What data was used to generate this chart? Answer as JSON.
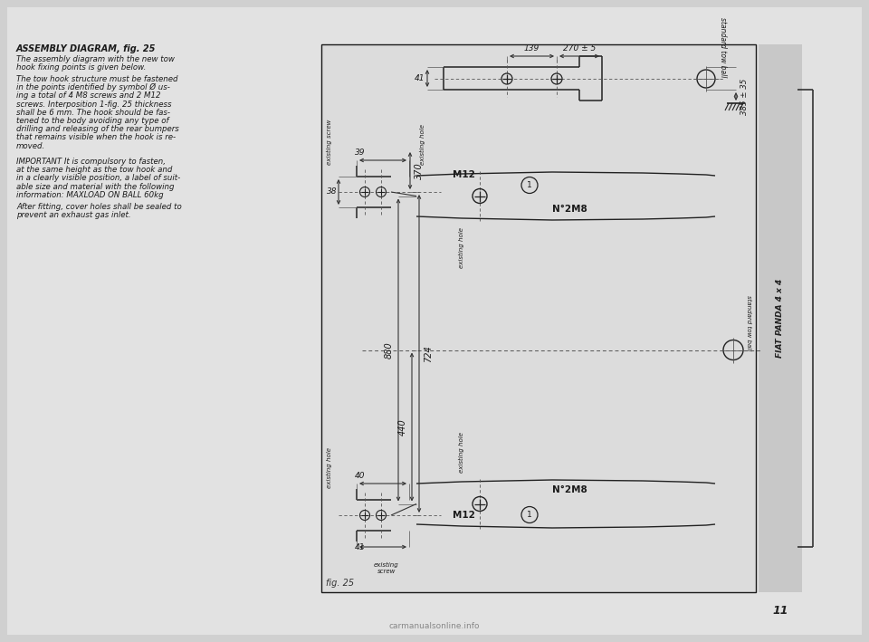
{
  "page_bg": "#c8c8c8",
  "content_bg": "#e8e8e8",
  "diag_bg": "#e0e0e0",
  "black": "#1a1a1a",
  "dark": "#2a2a2a",
  "gray": "#666666",
  "title_text": "ASSEMBLY DIAGRAM, fig. 25",
  "side_text": "FIAT PANDA 4 x 4",
  "page_num": "11",
  "fig_label": "fig. 25",
  "watermark": "carmanualsonline.info"
}
